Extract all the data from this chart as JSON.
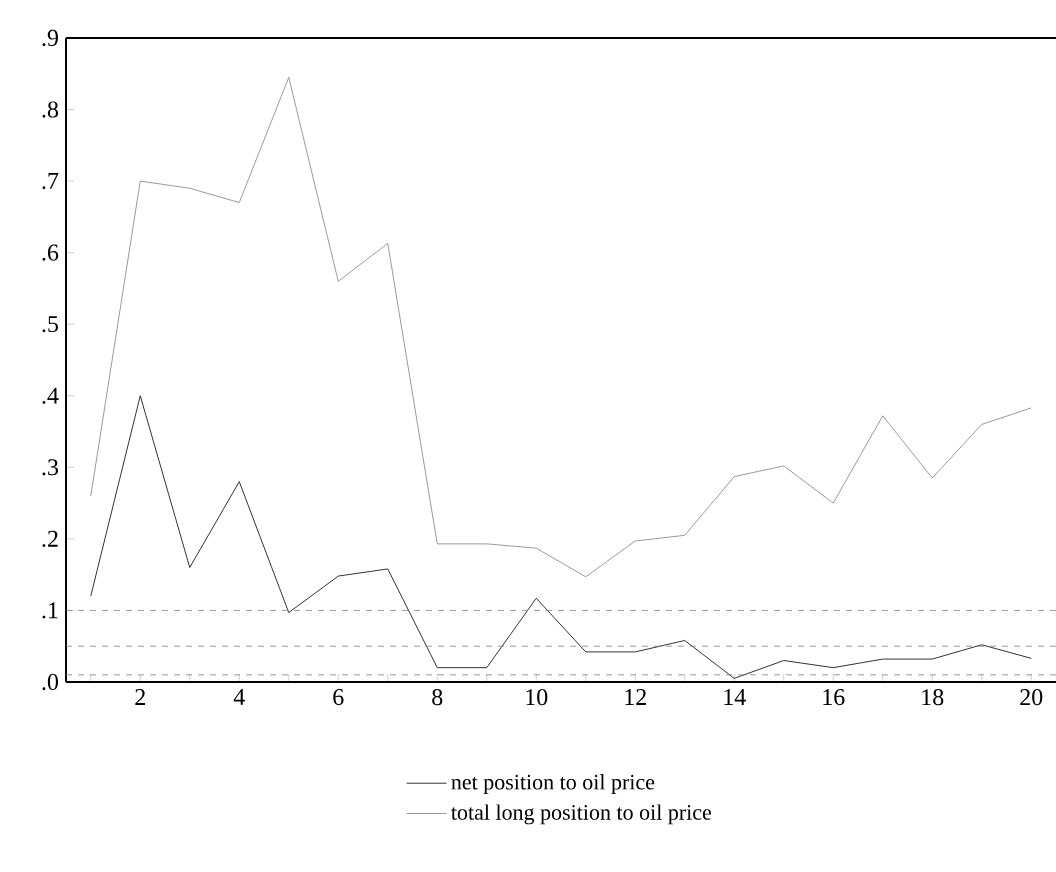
{
  "chart_data": {
    "type": "line",
    "x": [
      1,
      2,
      3,
      4,
      5,
      6,
      7,
      8,
      9,
      10,
      11,
      12,
      13,
      14,
      15,
      16,
      17,
      18,
      19,
      20
    ],
    "series": [
      {
        "name": "net position to oil price",
        "color": "#000000",
        "values": [
          0.12,
          0.4,
          0.16,
          0.28,
          0.097,
          0.148,
          0.158,
          0.02,
          0.02,
          0.117,
          0.042,
          0.042,
          0.058,
          0.005,
          0.03,
          0.02,
          0.032,
          0.032,
          0.052,
          0.033
        ]
      },
      {
        "name": "total long position to oil price",
        "color": "#808080",
        "values": [
          0.26,
          0.7,
          0.69,
          0.67,
          0.845,
          0.56,
          0.613,
          0.193,
          0.193,
          0.187,
          0.147,
          0.197,
          0.205,
          0.287,
          0.302,
          0.25,
          0.372,
          0.285,
          0.36,
          0.383
        ]
      }
    ],
    "xlim": [
      0.5,
      20.5
    ],
    "xticks": [
      {
        "value": 1,
        "label": null
      },
      2,
      {
        "value": 3,
        "label": null
      },
      4,
      {
        "value": 5,
        "label": null
      },
      6,
      {
        "value": 7,
        "label": null
      },
      8,
      {
        "value": 9,
        "label": null
      },
      10,
      {
        "value": 11,
        "label": null
      },
      12,
      {
        "value": 13,
        "label": null
      },
      14,
      {
        "value": 15,
        "label": null
      },
      16,
      {
        "value": 17,
        "label": null
      },
      18,
      {
        "value": 19,
        "label": null
      },
      20
    ],
    "ylim": [
      0,
      0.9
    ],
    "yticks": [
      {
        "value": 0,
        "label": ".0"
      },
      {
        "value": 0.1,
        "label": ".1"
      },
      {
        "value": 0.2,
        "label": ".2"
      },
      {
        "value": 0.3,
        "label": ".3"
      },
      {
        "value": 0.4,
        "label": ".4"
      },
      {
        "value": 0.5,
        "label": ".5"
      },
      {
        "value": 0.6,
        "label": ".6"
      },
      {
        "value": 0.7,
        "label": ".7"
      },
      {
        "value": 0.8,
        "label": ".8"
      },
      {
        "value": 0.9,
        "label": ".9"
      }
    ],
    "ref_lines": [
      {
        "axis": "y",
        "value": 0.1,
        "color": "#808080",
        "line_style": "dashed"
      },
      {
        "axis": "y",
        "value": 0.05,
        "color": "#808080",
        "line_style": "dashed"
      },
      {
        "axis": "y",
        "value": 0.01,
        "color": "#808080",
        "line_style": "dashed"
      }
    ],
    "grid": false,
    "legend": "bottom",
    "marker": "none",
    "line_style": "solid"
  }
}
